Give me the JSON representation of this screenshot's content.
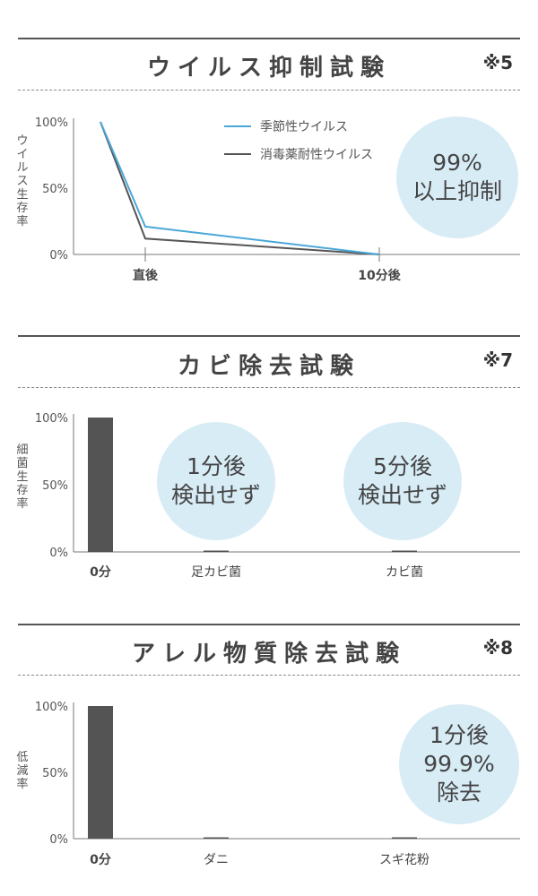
{
  "panels": {
    "virus": {
      "title": "ウイルス抑制試験",
      "note": "※5",
      "ylabel": "ウイルス生存率",
      "bubble": [
        "99%",
        "以上抑制"
      ]
    },
    "mold": {
      "title": "カビ除去試験",
      "note": "※7",
      "ylabel": "細菌生存率",
      "bubble1": [
        "1分後",
        "検出せず"
      ],
      "bubble2": [
        "5分後",
        "検出せず"
      ]
    },
    "allergen": {
      "title": "アレル物質除去試験",
      "note": "※8",
      "ylabel": "低減率",
      "bubble": [
        "1分後",
        "99.9%",
        "除去"
      ]
    }
  },
  "colors": {
    "blue": "#4aa8d8",
    "dark": "#555555",
    "bar": "#545454",
    "bubble": "#d8ecf6"
  },
  "chart_data": [
    {
      "type": "line",
      "title": "ウイルス抑制試験",
      "ylabel": "ウイルス生存率",
      "yticks": [
        "100%",
        "50%",
        "0%"
      ],
      "ylim": [
        0,
        100
      ],
      "x": [
        "",
        "直後",
        "10分後"
      ],
      "xticks": [
        "直後",
        "10分後"
      ],
      "series": [
        {
          "name": "季節性ウイルス",
          "color": "#4aa8d8",
          "values": [
            100,
            21,
            0
          ]
        },
        {
          "name": "消毒薬耐性ウイルス",
          "color": "#555555",
          "values": [
            100,
            12,
            0
          ]
        }
      ],
      "legend": "top-center"
    },
    {
      "type": "bar",
      "title": "カビ除去試験",
      "ylabel": "細菌生存率",
      "yticks": [
        "100%",
        "50%",
        "0%"
      ],
      "ylim": [
        0,
        100
      ],
      "categories": [
        "0分",
        "足カビ菌",
        "カビ菌"
      ],
      "values": [
        100,
        0,
        0
      ]
    },
    {
      "type": "bar",
      "title": "アレル物質除去試験",
      "ylabel": "低減率",
      "yticks": [
        "100%",
        "50%",
        "0%"
      ],
      "ylim": [
        0,
        100
      ],
      "categories": [
        "0分",
        "ダニ",
        "スギ花粉"
      ],
      "values": [
        100,
        0,
        0
      ]
    }
  ]
}
